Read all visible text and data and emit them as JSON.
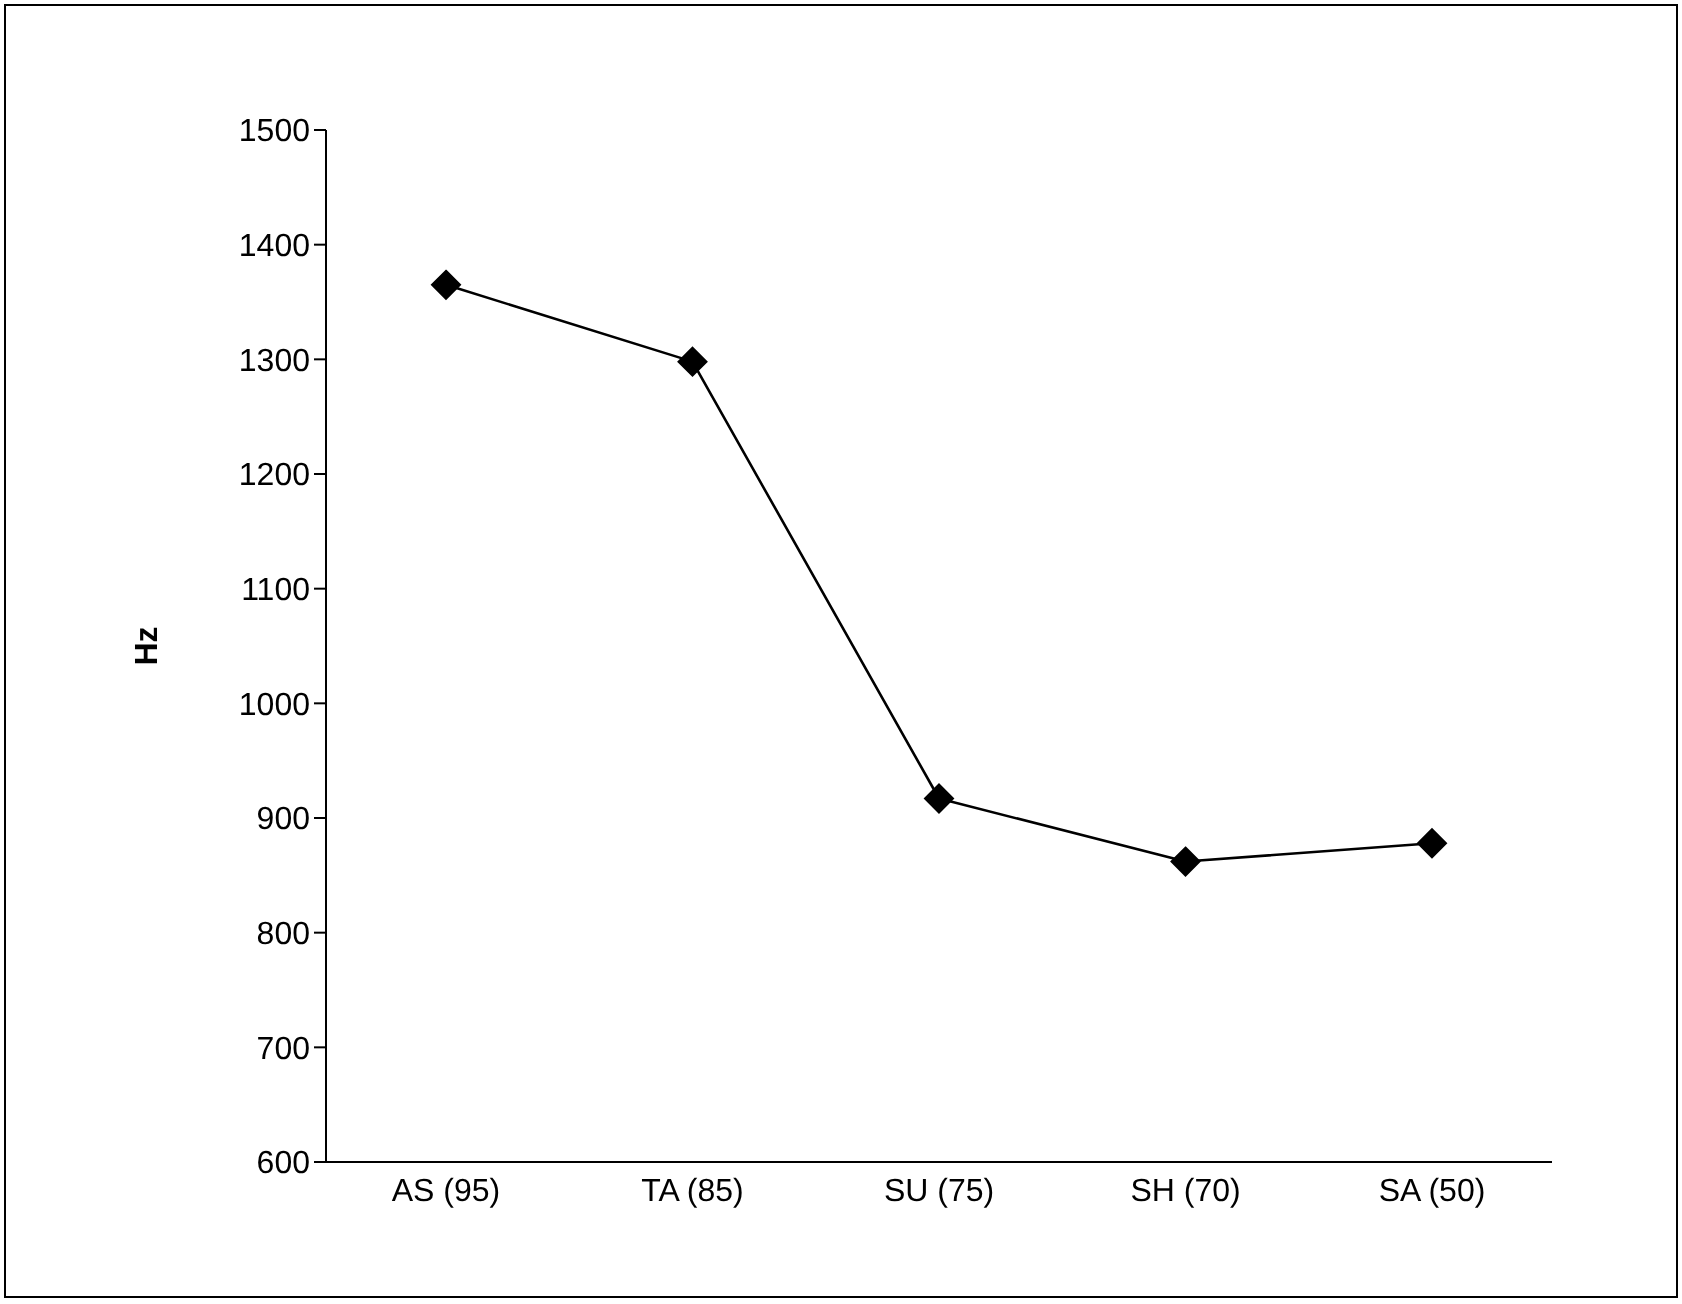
{
  "chart_data": {
    "type": "line",
    "ylabel": "Hz",
    "categories": [
      "AS (95)",
      "TA (85)",
      "SU (75)",
      "SH (70)",
      "SA (50)"
    ],
    "series": [
      {
        "color": "#000000",
        "values": [
          1365,
          1298,
          917,
          862,
          878
        ]
      }
    ],
    "ylim": [
      600,
      1500
    ],
    "yticks": [
      600,
      700,
      800,
      900,
      1000,
      1100,
      1200,
      1300,
      1400,
      1500
    ],
    "grid": false,
    "legend": false,
    "marker": "diamond",
    "line_style": "solid"
  }
}
